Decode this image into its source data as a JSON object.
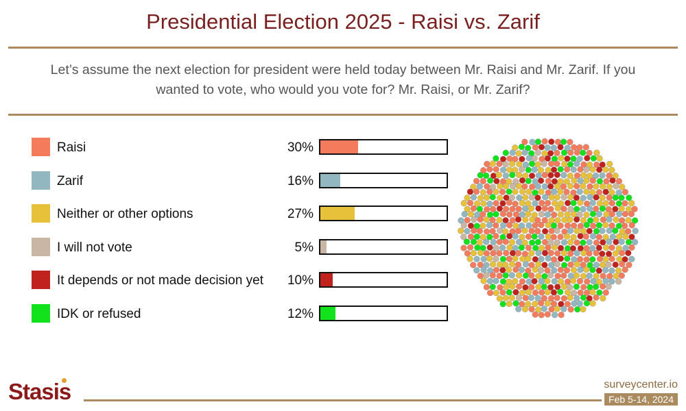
{
  "title": "Presidential Election 2025 - Raisi vs. Zarif",
  "question": "Let’s assume the next election for president were held today between Mr. Raisi and Mr. Zarif. If you wanted to vote, who would you vote for? Mr. Raisi, or Mr. Zarif?",
  "chart_data": {
    "type": "bar",
    "orientation": "horizontal",
    "title": "Presidential Election 2025 - Raisi vs. Zarif",
    "categories": [
      "Raisi",
      "Zarif",
      "Neither or other options",
      "I will not vote",
      "It depends or not made decision yet",
      "IDK or refused"
    ],
    "values": [
      30,
      16,
      27,
      5,
      10,
      12
    ],
    "value_labels": [
      "30%",
      "16%",
      "27%",
      "5%",
      "10%",
      "12%"
    ],
    "colors": [
      "#f47c5c",
      "#93b7c1",
      "#e8c13a",
      "#c9b6a4",
      "#c0221d",
      "#12e21c"
    ],
    "xlim": [
      0,
      100
    ],
    "unit": "%",
    "legend_position": "left",
    "dot_cloud": true
  },
  "footer": {
    "logo": "Stasis",
    "site": "surveycenter.io",
    "date": "Feb 5-14, 2024"
  }
}
